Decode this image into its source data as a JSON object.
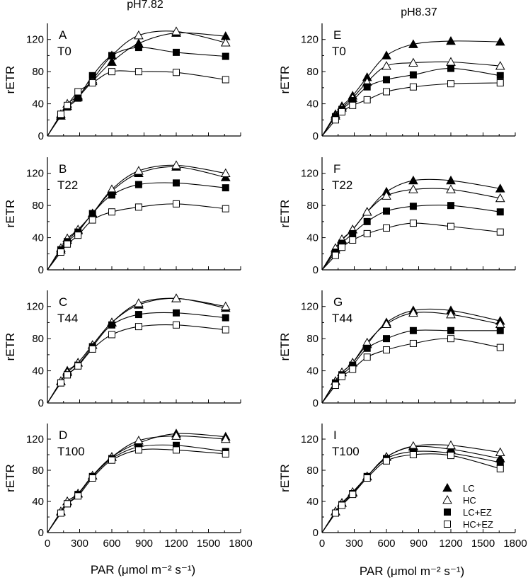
{
  "figure": {
    "column_titles": [
      "pH7.82",
      "pH8.37"
    ],
    "xlabel": "PAR (μmol m⁻² s⁻¹)",
    "ylabel": "rETR",
    "legend": [
      {
        "label": "LC",
        "marker": "filled-triangle"
      },
      {
        "label": "HC",
        "marker": "open-triangle"
      },
      {
        "label": "LC+EZ",
        "marker": "filled-square"
      },
      {
        "label": "HC+EZ",
        "marker": "open-square"
      }
    ],
    "colors": {
      "ink": "#000000",
      "background": "#ffffff"
    }
  },
  "chart_data": [
    {
      "type": "scatter",
      "panel": "A",
      "title": "T0",
      "column": "pH7.82",
      "xlabel": "PAR (μmol m⁻² s⁻¹)",
      "ylabel": "rETR",
      "xlim": [
        0,
        1800
      ],
      "ylim": [
        0,
        140
      ],
      "xticks": [
        0,
        300,
        600,
        900,
        1200,
        1500,
        1800
      ],
      "yticks": [
        0,
        40,
        80,
        120
      ],
      "x": [
        0,
        125,
        185,
        285,
        420,
        600,
        850,
        1200,
        1660
      ],
      "series": [
        {
          "name": "LC",
          "marker": "filled-triangle",
          "values": [
            0,
            25,
            37,
            48,
            68,
            92,
            115,
            128,
            124
          ]
        },
        {
          "name": "HC",
          "marker": "open-triangle",
          "values": [
            0,
            27,
            40,
            50,
            70,
            100,
            125,
            130,
            116
          ]
        },
        {
          "name": "LC+EZ",
          "marker": "filled-square",
          "values": [
            0,
            27,
            36,
            47,
            75,
            100,
            110,
            104,
            99
          ]
        },
        {
          "name": "HC+EZ",
          "marker": "open-square",
          "values": [
            0,
            27,
            38,
            55,
            66,
            80,
            80,
            79,
            70
          ]
        }
      ]
    },
    {
      "type": "scatter",
      "panel": "E",
      "title": "T0",
      "column": "pH8.37",
      "xlabel": "PAR (μmol m⁻² s⁻¹)",
      "ylabel": "rETR",
      "xlim": [
        0,
        1800
      ],
      "ylim": [
        0,
        140
      ],
      "xticks": [
        0,
        300,
        600,
        900,
        1200,
        1500,
        1800
      ],
      "yticks": [
        0,
        40,
        80,
        120
      ],
      "x": [
        0,
        125,
        185,
        285,
        420,
        600,
        850,
        1200,
        1660
      ],
      "series": [
        {
          "name": "LC",
          "marker": "filled-triangle",
          "values": [
            0,
            27,
            37,
            50,
            73,
            100,
            114,
            118,
            117
          ]
        },
        {
          "name": "HC",
          "marker": "open-triangle",
          "values": [
            0,
            25,
            35,
            47,
            67,
            87,
            91,
            92,
            87
          ]
        },
        {
          "name": "LC+EZ",
          "marker": "filled-square",
          "values": [
            0,
            24,
            33,
            44,
            61,
            70,
            76,
            84,
            75
          ]
        },
        {
          "name": "HC+EZ",
          "marker": "open-square",
          "values": [
            0,
            20,
            30,
            38,
            45,
            55,
            61,
            65,
            66
          ]
        }
      ]
    },
    {
      "type": "scatter",
      "panel": "B",
      "title": "T22",
      "column": "pH7.82",
      "xlabel": "PAR (μmol m⁻² s⁻¹)",
      "ylabel": "rETR",
      "xlim": [
        0,
        1800
      ],
      "ylim": [
        0,
        140
      ],
      "xticks": [
        0,
        300,
        600,
        900,
        1200,
        1500,
        1800
      ],
      "yticks": [
        0,
        40,
        80,
        120
      ],
      "x": [
        0,
        125,
        185,
        285,
        420,
        600,
        850,
        1200,
        1660
      ],
      "series": [
        {
          "name": "LC",
          "marker": "filled-triangle",
          "values": [
            0,
            25,
            37,
            49,
            70,
            98,
            120,
            128,
            115
          ]
        },
        {
          "name": "HC",
          "marker": "open-triangle",
          "values": [
            0,
            27,
            39,
            50,
            70,
            100,
            123,
            130,
            120
          ]
        },
        {
          "name": "LC+EZ",
          "marker": "filled-square",
          "values": [
            0,
            25,
            35,
            47,
            70,
            93,
            106,
            108,
            102
          ]
        },
        {
          "name": "HC+EZ",
          "marker": "open-square",
          "values": [
            0,
            22,
            32,
            43,
            62,
            72,
            78,
            82,
            76
          ]
        }
      ]
    },
    {
      "type": "scatter",
      "panel": "F",
      "title": "T22",
      "column": "pH8.37",
      "xlabel": "PAR (μmol m⁻² s⁻¹)",
      "ylabel": "rETR",
      "xlim": [
        0,
        1800
      ],
      "ylim": [
        0,
        140
      ],
      "xticks": [
        0,
        300,
        600,
        900,
        1200,
        1500,
        1800
      ],
      "yticks": [
        0,
        40,
        80,
        120
      ],
      "x": [
        0,
        125,
        185,
        285,
        420,
        600,
        850,
        1200,
        1660
      ],
      "series": [
        {
          "name": "LC",
          "marker": "filled-triangle",
          "values": [
            0,
            25,
            37,
            50,
            72,
            97,
            111,
            111,
            101
          ]
        },
        {
          "name": "HC",
          "marker": "open-triangle",
          "values": [
            0,
            27,
            38,
            50,
            72,
            92,
            100,
            100,
            89
          ]
        },
        {
          "name": "LC+EZ",
          "marker": "filled-square",
          "values": [
            0,
            22,
            33,
            45,
            60,
            73,
            79,
            80,
            72
          ]
        },
        {
          "name": "HC+EZ",
          "marker": "open-square",
          "values": [
            0,
            18,
            28,
            37,
            45,
            52,
            58,
            54,
            47
          ]
        }
      ]
    },
    {
      "type": "scatter",
      "panel": "C",
      "title": "T44",
      "column": "pH7.82",
      "xlabel": "PAR (μmol m⁻² s⁻¹)",
      "ylabel": "rETR",
      "xlim": [
        0,
        1800
      ],
      "ylim": [
        0,
        140
      ],
      "xticks": [
        0,
        300,
        600,
        900,
        1200,
        1500,
        1800
      ],
      "yticks": [
        0,
        40,
        80,
        120
      ],
      "x": [
        0,
        125,
        185,
        285,
        420,
        600,
        850,
        1200,
        1660
      ],
      "series": [
        {
          "name": "LC",
          "marker": "filled-triangle",
          "values": [
            0,
            27,
            40,
            50,
            72,
            100,
            122,
            130,
            118
          ]
        },
        {
          "name": "HC",
          "marker": "open-triangle",
          "values": [
            0,
            27,
            38,
            50,
            72,
            100,
            124,
            130,
            120
          ]
        },
        {
          "name": "LC+EZ",
          "marker": "filled-square",
          "values": [
            0,
            25,
            35,
            47,
            70,
            97,
            110,
            112,
            106
          ]
        },
        {
          "name": "HC+EZ",
          "marker": "open-square",
          "values": [
            0,
            25,
            35,
            46,
            67,
            85,
            95,
            97,
            91
          ]
        }
      ]
    },
    {
      "type": "scatter",
      "panel": "G",
      "title": "T44",
      "column": "pH8.37",
      "xlabel": "PAR (μmol m⁻² s⁻¹)",
      "ylabel": "rETR",
      "xlim": [
        0,
        1800
      ],
      "ylim": [
        0,
        140
      ],
      "xticks": [
        0,
        300,
        600,
        900,
        1200,
        1500,
        1800
      ],
      "yticks": [
        0,
        40,
        80,
        120
      ],
      "x": [
        0,
        125,
        185,
        285,
        420,
        600,
        850,
        1200,
        1660
      ],
      "series": [
        {
          "name": "LC",
          "marker": "filled-triangle",
          "values": [
            0,
            27,
            38,
            50,
            73,
            100,
            115,
            115,
            102
          ]
        },
        {
          "name": "HC",
          "marker": "open-triangle",
          "values": [
            0,
            27,
            38,
            50,
            75,
            98,
            112,
            110,
            98
          ]
        },
        {
          "name": "LC+EZ",
          "marker": "filled-square",
          "values": [
            0,
            25,
            35,
            47,
            68,
            80,
            90,
            90,
            90
          ]
        },
        {
          "name": "HC+EZ",
          "marker": "open-square",
          "values": [
            0,
            22,
            33,
            42,
            57,
            66,
            74,
            80,
            69
          ]
        }
      ]
    },
    {
      "type": "scatter",
      "panel": "D",
      "title": "T100",
      "column": "pH7.82",
      "xlabel": "PAR (μmol m⁻² s⁻¹)",
      "ylabel": "rETR",
      "xlim": [
        0,
        1800
      ],
      "ylim": [
        0,
        140
      ],
      "xticks": [
        0,
        300,
        600,
        900,
        1200,
        1500,
        1800
      ],
      "yticks": [
        0,
        40,
        80,
        120
      ],
      "x": [
        0,
        125,
        185,
        285,
        420,
        600,
        850,
        1200,
        1660
      ],
      "series": [
        {
          "name": "LC",
          "marker": "filled-triangle",
          "values": [
            0,
            27,
            40,
            50,
            73,
            97,
            115,
            127,
            123
          ]
        },
        {
          "name": "HC",
          "marker": "open-triangle",
          "values": [
            0,
            27,
            40,
            50,
            73,
            97,
            118,
            124,
            120
          ]
        },
        {
          "name": "LC+EZ",
          "marker": "filled-square",
          "values": [
            0,
            25,
            37,
            49,
            72,
            95,
            110,
            112,
            104
          ]
        },
        {
          "name": "HC+EZ",
          "marker": "open-square",
          "values": [
            0,
            25,
            37,
            47,
            70,
            93,
            106,
            106,
            101
          ]
        }
      ]
    },
    {
      "type": "scatter",
      "panel": "I",
      "title": "T100",
      "column": "pH8.37",
      "xlabel": "PAR (μmol m⁻² s⁻¹)",
      "ylabel": "rETR",
      "xlim": [
        0,
        1800
      ],
      "ylim": [
        0,
        140
      ],
      "xticks": [
        0,
        300,
        600,
        900,
        1200,
        1500,
        1800
      ],
      "yticks": [
        0,
        40,
        80,
        120
      ],
      "x": [
        0,
        125,
        185,
        285,
        420,
        600,
        850,
        1200,
        1660
      ],
      "series": [
        {
          "name": "LC",
          "marker": "filled-triangle",
          "values": [
            0,
            27,
            38,
            51,
            72,
            97,
            110,
            107,
            95
          ]
        },
        {
          "name": "HC",
          "marker": "open-triangle",
          "values": [
            0,
            27,
            38,
            52,
            72,
            97,
            111,
            112,
            103
          ]
        },
        {
          "name": "LC+EZ",
          "marker": "filled-square",
          "values": [
            0,
            25,
            36,
            50,
            72,
            95,
            104,
            102,
            90
          ]
        },
        {
          "name": "HC+EZ",
          "marker": "open-square",
          "values": [
            0,
            25,
            35,
            49,
            70,
            92,
            100,
            99,
            82
          ]
        }
      ]
    }
  ]
}
